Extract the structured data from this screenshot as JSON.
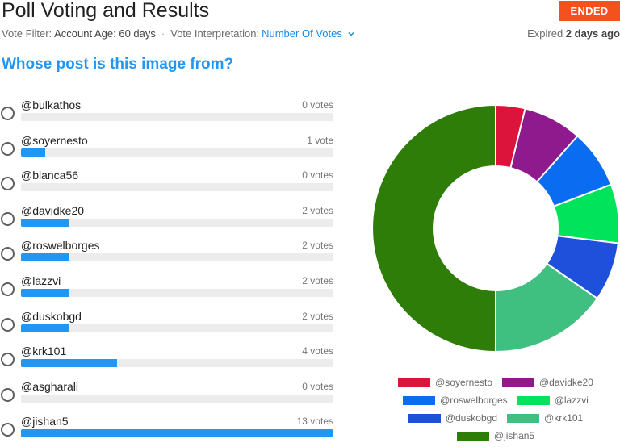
{
  "header": {
    "title": "Poll Voting and Results",
    "status": "ENDED",
    "filter_label": "Vote Filter:",
    "filter_value": "Account Age: 60 days",
    "interp_label": "Vote Interpretation:",
    "interp_value": "Number Of Votes",
    "expired_prefix": "Expired",
    "expired_value": "2 days ago"
  },
  "poll": {
    "question": "Whose post is this image from?",
    "max_votes": 13,
    "options": [
      {
        "name": "@bulkathos",
        "votes": 0,
        "votes_label": "0 votes"
      },
      {
        "name": "@soyernesto",
        "votes": 1,
        "votes_label": "1 vote"
      },
      {
        "name": "@blanca56",
        "votes": 0,
        "votes_label": "0 votes"
      },
      {
        "name": "@davidke20",
        "votes": 2,
        "votes_label": "2 votes"
      },
      {
        "name": "@roswelborges",
        "votes": 2,
        "votes_label": "2 votes"
      },
      {
        "name": "@lazzvi",
        "votes": 2,
        "votes_label": "2 votes"
      },
      {
        "name": "@duskobgd",
        "votes": 2,
        "votes_label": "2 votes"
      },
      {
        "name": "@krk101",
        "votes": 4,
        "votes_label": "4 votes"
      },
      {
        "name": "@asgharali",
        "votes": 0,
        "votes_label": "0 votes"
      },
      {
        "name": "@jishan5",
        "votes": 13,
        "votes_label": "13 votes"
      }
    ]
  },
  "chart_data": {
    "type": "pie",
    "donut": true,
    "categories": [
      "@soyernesto",
      "@davidke20",
      "@roswelborges",
      "@lazzvi",
      "@duskobgd",
      "@krk101",
      "@jishan5"
    ],
    "values": [
      1,
      2,
      2,
      2,
      2,
      4,
      13
    ],
    "colors": [
      "#dc143c",
      "#8e1a8e",
      "#0a6cf0",
      "#00e35a",
      "#1e50dc",
      "#3fbf80",
      "#2e7d09"
    ],
    "legend_position": "bottom"
  }
}
